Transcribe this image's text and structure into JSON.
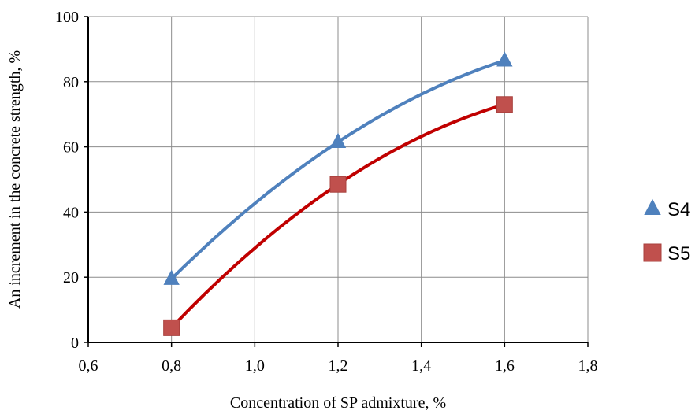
{
  "chart_data": {
    "type": "scatter",
    "title": "",
    "xlabel": "Concentration of SP admixture, %",
    "ylabel": "An increment in the concrete strength, %",
    "xlim": [
      0.6,
      1.8
    ],
    "ylim": [
      0,
      100
    ],
    "x_ticks": [
      "0,6",
      "0,8",
      "1,0",
      "1,2",
      "1,4",
      "1,6",
      "1,8"
    ],
    "y_ticks": [
      "0",
      "20",
      "40",
      "60",
      "80",
      "100"
    ],
    "grid": true,
    "legend_position": "right",
    "trendline": "polynomial",
    "series": [
      {
        "name": "S4",
        "marker": "triangle",
        "color": "#4F81BD",
        "line_color": "#4F81BD",
        "x": [
          0.8,
          1.2,
          1.6
        ],
        "y": [
          19.5,
          61.5,
          86.5
        ]
      },
      {
        "name": "S5",
        "marker": "square",
        "color": "#C0504D",
        "line_color": "#C00000",
        "x": [
          0.8,
          1.2,
          1.6
        ],
        "y": [
          4.5,
          48.5,
          73.0
        ]
      }
    ]
  }
}
